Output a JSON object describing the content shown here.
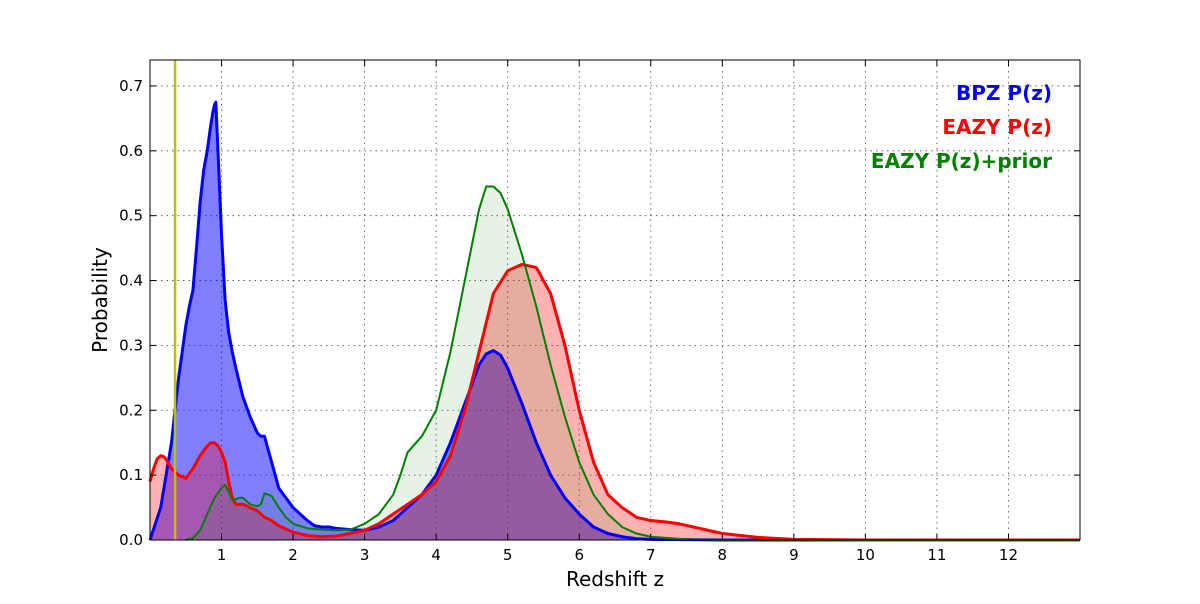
{
  "chart_data": {
    "type": "area",
    "title": "",
    "xlabel": "Redshift z",
    "ylabel": "Probability",
    "xlim": [
      0,
      13
    ],
    "ylim": [
      0,
      0.74
    ],
    "x_ticks": [
      1,
      2,
      3,
      4,
      5,
      6,
      7,
      8,
      9,
      10,
      11,
      12
    ],
    "y_ticks": [
      0.0,
      0.1,
      0.2,
      0.3,
      0.4,
      0.5,
      0.6,
      0.7
    ],
    "x_tick_labels": [
      "1",
      "2",
      "3",
      "4",
      "5",
      "6",
      "7",
      "8",
      "9",
      "10",
      "11",
      "12"
    ],
    "y_tick_labels": [
      "0.0",
      "0.1",
      "0.2",
      "0.3",
      "0.4",
      "0.5",
      "0.6",
      "0.7"
    ],
    "grid": true,
    "legend_position": "top-right",
    "vertical_marker": {
      "x": 0.35,
      "color": "#bfbf00"
    },
    "series": [
      {
        "name": "BPZ P(z)",
        "color": "#0000ff",
        "fill": "#0000ff",
        "fill_opacity": 0.5,
        "line_width": 3,
        "x": [
          0,
          0.15,
          0.3,
          0.4,
          0.5,
          0.55,
          0.6,
          0.65,
          0.7,
          0.75,
          0.8,
          0.85,
          0.88,
          0.9,
          0.92,
          0.95,
          1.0,
          1.05,
          1.1,
          1.15,
          1.2,
          1.3,
          1.4,
          1.5,
          1.55,
          1.6,
          1.7,
          1.8,
          1.9,
          2.0,
          2.1,
          2.2,
          2.3,
          2.4,
          2.5,
          2.6,
          2.8,
          3.0,
          3.2,
          3.4,
          3.6,
          3.8,
          4.0,
          4.2,
          4.4,
          4.6,
          4.7,
          4.8,
          4.9,
          5.0,
          5.2,
          5.4,
          5.6,
          5.8,
          6.0,
          6.2,
          6.4,
          6.6,
          6.8,
          7.0,
          7.5,
          8.0,
          9.0,
          10.0,
          11.0,
          12.0,
          13.0
        ],
        "y": [
          0.0,
          0.05,
          0.15,
          0.25,
          0.33,
          0.36,
          0.385,
          0.45,
          0.52,
          0.57,
          0.6,
          0.64,
          0.66,
          0.67,
          0.675,
          0.6,
          0.47,
          0.37,
          0.32,
          0.29,
          0.265,
          0.22,
          0.19,
          0.165,
          0.16,
          0.16,
          0.12,
          0.08,
          0.065,
          0.05,
          0.04,
          0.03,
          0.022,
          0.02,
          0.02,
          0.018,
          0.016,
          0.015,
          0.02,
          0.03,
          0.05,
          0.07,
          0.1,
          0.15,
          0.21,
          0.27,
          0.287,
          0.292,
          0.285,
          0.265,
          0.21,
          0.15,
          0.1,
          0.065,
          0.04,
          0.02,
          0.01,
          0.005,
          0.002,
          0.001,
          0.0005,
          0.0,
          0.0,
          0.0,
          0.0,
          0.0,
          0.0
        ]
      },
      {
        "name": "EAZY P(z)",
        "color": "#ff0000",
        "fill": "#ff0000",
        "fill_opacity": 0.3,
        "line_width": 3,
        "x": [
          0,
          0.05,
          0.1,
          0.15,
          0.2,
          0.25,
          0.3,
          0.4,
          0.5,
          0.6,
          0.7,
          0.8,
          0.85,
          0.9,
          0.95,
          1.0,
          1.05,
          1.1,
          1.15,
          1.2,
          1.25,
          1.3,
          1.4,
          1.5,
          1.6,
          1.7,
          1.8,
          2.0,
          2.2,
          2.4,
          2.6,
          2.8,
          3.0,
          3.2,
          3.4,
          3.6,
          3.8,
          4.0,
          4.2,
          4.4,
          4.6,
          4.8,
          5.0,
          5.2,
          5.4,
          5.6,
          5.8,
          6.0,
          6.2,
          6.4,
          6.6,
          6.8,
          7.0,
          7.2,
          7.4,
          7.6,
          7.8,
          8.0,
          8.5,
          9.0,
          10.0,
          11.0,
          12.0,
          13.0
        ],
        "y": [
          0.09,
          0.11,
          0.125,
          0.13,
          0.128,
          0.12,
          0.11,
          0.1,
          0.095,
          0.11,
          0.13,
          0.145,
          0.15,
          0.15,
          0.145,
          0.135,
          0.12,
          0.09,
          0.065,
          0.055,
          0.055,
          0.055,
          0.05,
          0.045,
          0.035,
          0.03,
          0.022,
          0.012,
          0.007,
          0.005,
          0.006,
          0.01,
          0.015,
          0.025,
          0.04,
          0.055,
          0.07,
          0.09,
          0.13,
          0.2,
          0.29,
          0.38,
          0.415,
          0.425,
          0.42,
          0.38,
          0.3,
          0.2,
          0.12,
          0.07,
          0.05,
          0.035,
          0.03,
          0.028,
          0.025,
          0.02,
          0.015,
          0.01,
          0.004,
          0.001,
          0.0,
          0.0,
          0.0,
          0.0
        ]
      },
      {
        "name": "EAZY P(z)+prior",
        "color": "#008000",
        "fill": "#008000",
        "fill_opacity": 0.1,
        "line_width": 2,
        "x": [
          0.5,
          0.6,
          0.7,
          0.8,
          0.9,
          1.0,
          1.05,
          1.1,
          1.15,
          1.2,
          1.25,
          1.3,
          1.4,
          1.5,
          1.55,
          1.6,
          1.65,
          1.7,
          1.8,
          1.9,
          2.0,
          2.2,
          2.4,
          2.6,
          2.8,
          3.0,
          3.2,
          3.4,
          3.5,
          3.6,
          3.8,
          4.0,
          4.2,
          4.4,
          4.6,
          4.7,
          4.8,
          4.9,
          5.0,
          5.2,
          5.4,
          5.6,
          5.8,
          6.0,
          6.2,
          6.4,
          6.6,
          6.8,
          7.0,
          7.5,
          8.0,
          13.0
        ],
        "y": [
          0.0,
          0.003,
          0.015,
          0.04,
          0.065,
          0.08,
          0.085,
          0.075,
          0.062,
          0.063,
          0.065,
          0.065,
          0.055,
          0.052,
          0.055,
          0.072,
          0.07,
          0.068,
          0.05,
          0.035,
          0.025,
          0.018,
          0.016,
          0.015,
          0.016,
          0.025,
          0.04,
          0.07,
          0.1,
          0.135,
          0.16,
          0.2,
          0.29,
          0.4,
          0.51,
          0.545,
          0.545,
          0.535,
          0.51,
          0.44,
          0.36,
          0.27,
          0.19,
          0.12,
          0.07,
          0.04,
          0.02,
          0.01,
          0.005,
          0.001,
          0.0,
          0.0
        ]
      }
    ]
  }
}
